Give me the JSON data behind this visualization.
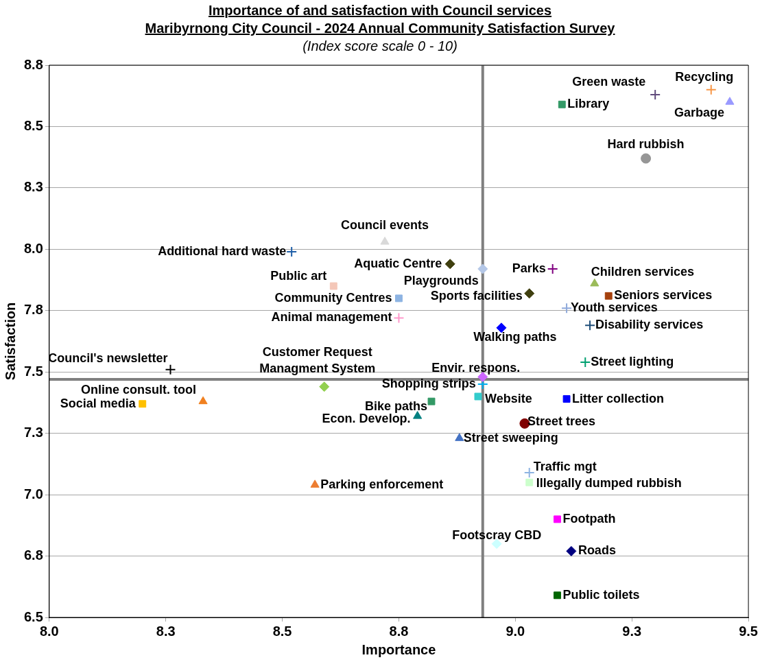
{
  "chart_data": {
    "type": "scatter",
    "title": "Importance of and satisfaction with Council services",
    "subtitle": "Maribyrnong City Council - 2024 Annual Community Satisfaction Survey",
    "annotations": [
      "(Index score scale 0 - 10)"
    ],
    "xlabel": "Importance",
    "ylabel": "Satisfaction",
    "xlim": [
      8.0,
      9.5
    ],
    "xticks": [
      {
        "value": 8,
        "label": "8.0"
      },
      {
        "value": 8.25,
        "label": "8.3"
      },
      8.5,
      {
        "value": 8.75,
        "label": "8.8"
      },
      {
        "value": 9,
        "label": "9.0"
      },
      {
        "value": 9.25,
        "label": "9.3"
      },
      9.5
    ],
    "ylim": [
      6.5,
      8.75
    ],
    "yticks": [
      6.5,
      {
        "value": 6.75,
        "label": "6.8"
      },
      {
        "value": 7,
        "label": "7.0"
      },
      {
        "value": 7.25,
        "label": "7.3"
      },
      7.5,
      {
        "value": 7.75,
        "label": "7.8"
      },
      {
        "value": 8,
        "label": "8.0"
      },
      {
        "value": 8.25,
        "label": "8.3"
      },
      8.5,
      {
        "value": 8.75,
        "label": "8.8"
      }
    ],
    "grid": "y",
    "legend": false,
    "ref_lines": [
      {
        "axis": "x",
        "value": 8.93,
        "color": "#7f7f7f"
      },
      {
        "axis": "y",
        "value": 7.47,
        "color": "#7f7f7f"
      }
    ],
    "series": [
      {
        "name": "Green waste",
        "color": "#604a7b",
        "marker": "cross",
        "x": [
          9.3
        ],
        "values": [
          8.63
        ]
      },
      {
        "name": "Recycling",
        "color": "#f79646",
        "marker": "cross",
        "x": [
          9.42
        ],
        "values": [
          8.65
        ]
      },
      {
        "name": "Garbage",
        "color": "#9999ff",
        "marker": "triangle",
        "x": [
          9.46
        ],
        "values": [
          8.6
        ]
      },
      {
        "name": "Library",
        "color": "#339966",
        "marker": "square",
        "x": [
          9.1
        ],
        "values": [
          8.59
        ]
      },
      {
        "name": "Hard rubbish",
        "color": "#969696",
        "marker": "circle",
        "x": [
          9.28
        ],
        "values": [
          8.37
        ]
      },
      {
        "name": "Council events",
        "color": "#d9d9d9",
        "marker": "triangle",
        "x": [
          8.72
        ],
        "values": [
          8.03
        ]
      },
      {
        "name": "Additional hard waste",
        "color": "#1f5fa8",
        "marker": "cross",
        "x": [
          8.52
        ],
        "values": [
          7.99
        ]
      },
      {
        "name": "Aquatic Centre",
        "color": "#3f3f0f",
        "marker": "diamond",
        "x": [
          8.86
        ],
        "values": [
          7.94
        ]
      },
      {
        "name": "Playgrounds",
        "color": "#b4c7e7",
        "marker": "diamond",
        "x": [
          8.93
        ],
        "values": [
          7.92
        ]
      },
      {
        "name": "Parks",
        "color": "#800080",
        "marker": "cross",
        "x": [
          9.08
        ],
        "values": [
          7.92
        ]
      },
      {
        "name": "Public art",
        "color": "#f4c7b8",
        "marker": "square",
        "x": [
          8.61
        ],
        "values": [
          7.85
        ]
      },
      {
        "name": "Children services",
        "color": "#9bbb59",
        "marker": "triangle",
        "x": [
          9.17
        ],
        "values": [
          7.86
        ]
      },
      {
        "name": "Seniors services",
        "color": "#a5410e",
        "marker": "square",
        "x": [
          9.2
        ],
        "values": [
          7.81
        ]
      },
      {
        "name": "Sports facilities",
        "color": "#3f3f0f",
        "marker": "diamond",
        "x": [
          9.03
        ],
        "values": [
          7.82
        ]
      },
      {
        "name": "Community Centres",
        "color": "#8db3e2",
        "marker": "square",
        "x": [
          8.75
        ],
        "values": [
          7.8
        ]
      },
      {
        "name": "Youth services",
        "color": "#8ea9db",
        "marker": "cross",
        "x": [
          9.11
        ],
        "values": [
          7.76
        ]
      },
      {
        "name": "Animal management",
        "color": "#ff99cc",
        "marker": "cross",
        "x": [
          8.75
        ],
        "values": [
          7.72
        ]
      },
      {
        "name": "Disability services",
        "color": "#1f4e79",
        "marker": "cross",
        "x": [
          9.16
        ],
        "values": [
          7.69
        ]
      },
      {
        "name": "Walking paths",
        "color": "#0000ff",
        "marker": "diamond",
        "x": [
          8.97
        ],
        "values": [
          7.68
        ]
      },
      {
        "name": "Street lighting",
        "color": "#00a070",
        "marker": "cross",
        "x": [
          9.15
        ],
        "values": [
          7.54
        ]
      },
      {
        "name": "Council's newsletter",
        "color": "#000000",
        "marker": "cross",
        "x": [
          8.26
        ],
        "values": [
          7.51
        ]
      },
      {
        "name": "Envir. respons.",
        "color": "#cc66ff",
        "marker": "diamond",
        "x": [
          8.93
        ],
        "values": [
          7.48
        ]
      },
      {
        "name": "Customer Request Managment System",
        "color": "#92d050",
        "marker": "diamond",
        "x": [
          8.59
        ],
        "values": [
          7.44
        ]
      },
      {
        "name": "Shopping strips",
        "color": "#00b0f0",
        "marker": "cross",
        "x": [
          8.93
        ],
        "values": [
          7.45
        ]
      },
      {
        "name": "Social media",
        "color": "#ffc000",
        "marker": "square",
        "x": [
          8.2
        ],
        "values": [
          7.37
        ]
      },
      {
        "name": "Online consult. tool",
        "color": "#f08020",
        "marker": "triangle",
        "x": [
          8.33
        ],
        "values": [
          7.38
        ]
      },
      {
        "name": "Bike paths",
        "color": "#339966",
        "marker": "square",
        "x": [
          8.82
        ],
        "values": [
          7.38
        ]
      },
      {
        "name": "Website",
        "color": "#33cccc",
        "marker": "square",
        "x": [
          8.92
        ],
        "values": [
          7.4
        ]
      },
      {
        "name": "Litter collection",
        "color": "#0000ff",
        "marker": "square",
        "x": [
          9.11
        ],
        "values": [
          7.39
        ]
      },
      {
        "name": "Econ. Develop.",
        "color": "#008080",
        "marker": "triangle",
        "x": [
          8.79
        ],
        "values": [
          7.32
        ]
      },
      {
        "name": "Street trees",
        "color": "#800000",
        "marker": "circle",
        "x": [
          9.02
        ],
        "values": [
          7.29
        ]
      },
      {
        "name": "Street sweeping",
        "color": "#4472c4",
        "marker": "triangle",
        "x": [
          8.88
        ],
        "values": [
          7.23
        ]
      },
      {
        "name": "Traffic mgt",
        "color": "#8db3e2",
        "marker": "cross",
        "x": [
          9.03
        ],
        "values": [
          7.09
        ]
      },
      {
        "name": "Illegally dumped rubbish",
        "color": "#ccffcc",
        "marker": "square",
        "x": [
          9.03
        ],
        "values": [
          7.05
        ]
      },
      {
        "name": "Parking enforcement",
        "color": "#ed7d31",
        "marker": "triangle",
        "x": [
          8.57
        ],
        "values": [
          7.04
        ]
      },
      {
        "name": "Footpath",
        "color": "#ff00ff",
        "marker": "square",
        "x": [
          9.09
        ],
        "values": [
          6.9
        ]
      },
      {
        "name": "Footscray CBD",
        "color": "#ccffff",
        "marker": "diamond",
        "x": [
          8.96
        ],
        "values": [
          6.8
        ]
      },
      {
        "name": "Roads",
        "color": "#000080",
        "marker": "diamond",
        "x": [
          9.12
        ],
        "values": [
          6.77
        ]
      },
      {
        "name": "Public toilets",
        "color": "#006600",
        "marker": "square",
        "x": [
          9.09
        ],
        "values": [
          6.59
        ]
      }
    ]
  }
}
